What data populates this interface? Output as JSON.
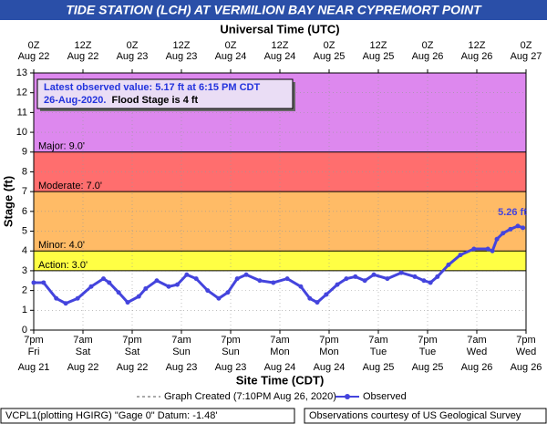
{
  "chart_data": {
    "type": "line",
    "title": "TIDE STATION (LCH) AT VERMILION BAY NEAR CYPREMORT POINT",
    "top_axis_label": "Universal Time (UTC)",
    "xlabel": "Site Time (CDT)",
    "ylabel": "Stage (ft)",
    "xlim": [
      0,
      120
    ],
    "ylim": [
      0,
      13
    ],
    "yticks": [
      0,
      1,
      2,
      3,
      4,
      5,
      6,
      7,
      8,
      9,
      10,
      11,
      12,
      13
    ],
    "grid": true,
    "top_ticks": [
      {
        "value": 0,
        "label": "0Z",
        "date": "Aug 22"
      },
      {
        "value": 12,
        "label": "12Z",
        "date": "Aug 22"
      },
      {
        "value": 24,
        "label": "0Z",
        "date": "Aug 23"
      },
      {
        "value": 36,
        "label": "12Z",
        "date": "Aug 23"
      },
      {
        "value": 48,
        "label": "0Z",
        "date": "Aug 24"
      },
      {
        "value": 60,
        "label": "12Z",
        "date": "Aug 24"
      },
      {
        "value": 72,
        "label": "0Z",
        "date": "Aug 25"
      },
      {
        "value": 84,
        "label": "12Z",
        "date": "Aug 25"
      },
      {
        "value": 96,
        "label": "0Z",
        "date": "Aug 26"
      },
      {
        "value": 108,
        "label": "12Z",
        "date": "Aug 26"
      },
      {
        "value": 120,
        "label": "0Z",
        "date": "Aug 27"
      }
    ],
    "xticks": [
      {
        "value": 0,
        "label": "7pm",
        "day": "Fri",
        "date": "Aug 21"
      },
      {
        "value": 12,
        "label": "7am",
        "day": "Sat",
        "date": "Aug 22"
      },
      {
        "value": 24,
        "label": "7pm",
        "day": "Sat",
        "date": "Aug 22"
      },
      {
        "value": 36,
        "label": "7am",
        "day": "Sun",
        "date": "Aug 23"
      },
      {
        "value": 48,
        "label": "7pm",
        "day": "Sun",
        "date": "Aug 23"
      },
      {
        "value": 60,
        "label": "7am",
        "day": "Mon",
        "date": "Aug 24"
      },
      {
        "value": 72,
        "label": "7pm",
        "day": "Mon",
        "date": "Aug 24"
      },
      {
        "value": 84,
        "label": "7am",
        "day": "Tue",
        "date": "Aug 25"
      },
      {
        "value": 96,
        "label": "7pm",
        "day": "Tue",
        "date": "Aug 25"
      },
      {
        "value": 108,
        "label": "7am",
        "day": "Wed",
        "date": "Aug 26"
      },
      {
        "value": 120,
        "label": "7pm",
        "day": "Wed",
        "date": "Aug 26"
      }
    ],
    "flood_categories": [
      {
        "label": "Major: 9.0'",
        "value": 9,
        "color": "#dd88ee"
      },
      {
        "label": "Moderate: 7.0'",
        "value": 7,
        "color": "#ff6e6e"
      },
      {
        "label": "Minor: 4.0'",
        "value": 4,
        "color": "#ffbb66"
      },
      {
        "label": "Action: 3.0'",
        "value": 3,
        "color": "#ffff44"
      }
    ],
    "info": {
      "line1": "Latest observed value: 5.17 ft at 6:15 PM CDT",
      "line2": "26-Aug-2020.",
      "line3": "Flood Stage is 4 ft"
    },
    "peak_label": "5.26 ft",
    "created_label": "Graph Created (7:10PM Aug 26, 2020)",
    "footer_left": "VCPL1(plotting HGIRG) \"Gage 0\" Datum: -1.48'",
    "footer_right": "Observations courtesy of US Geological Survey",
    "series": [
      {
        "name": "Observed",
        "color": "#4444dd",
        "x": [
          0,
          2.4,
          5.5,
          7.8,
          10.7,
          14,
          17,
          18.4,
          20.7,
          22.9,
          25.6,
          27.3,
          30,
          32.9,
          35,
          37.3,
          39.6,
          42.4,
          45.1,
          47.3,
          49.6,
          51.8,
          55.1,
          58.4,
          61.8,
          65.1,
          67.3,
          69.1,
          71.3,
          74,
          76.2,
          78.4,
          80.7,
          82.9,
          86.2,
          89.6,
          92.9,
          95.1,
          96.7,
          98.4,
          101.1,
          104,
          107.3,
          110.7,
          111.8,
          112.9,
          114.4,
          116.2,
          118,
          119.25
        ],
        "values": [
          2.4,
          2.4,
          1.6,
          1.35,
          1.6,
          2.2,
          2.6,
          2.4,
          1.9,
          1.4,
          1.7,
          2.1,
          2.5,
          2.2,
          2.3,
          2.8,
          2.6,
          2.0,
          1.6,
          1.9,
          2.6,
          2.8,
          2.5,
          2.4,
          2.6,
          2.2,
          1.6,
          1.4,
          1.8,
          2.3,
          2.6,
          2.7,
          2.5,
          2.8,
          2.6,
          2.9,
          2.7,
          2.5,
          2.4,
          2.7,
          3.3,
          3.8,
          4.1,
          4.1,
          4.0,
          4.6,
          4.9,
          5.1,
          5.26,
          5.17
        ]
      }
    ]
  }
}
